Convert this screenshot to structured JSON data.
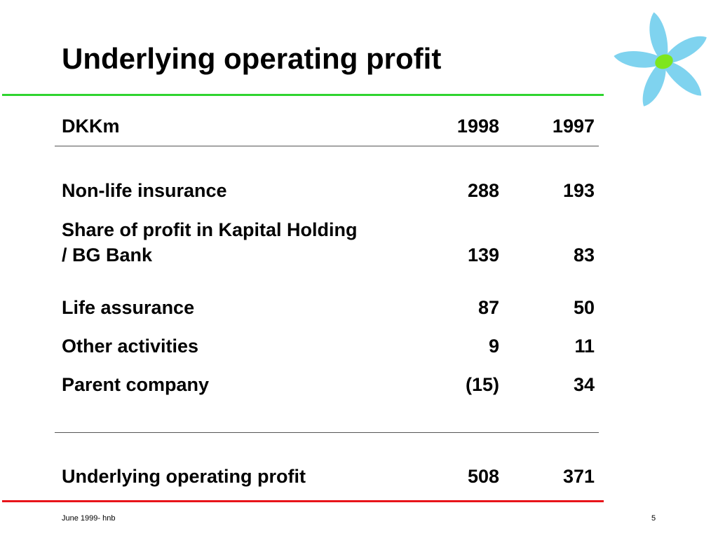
{
  "slide": {
    "title": "Underlying operating profit",
    "footer_left": "June 1999- hnb",
    "page_number": "5"
  },
  "colors": {
    "top_rule": "#2fd42f",
    "bottom_rule": "#e8141a",
    "logo_petals": "#7fd3ef",
    "logo_center": "#7ee61e"
  },
  "icons": {
    "logo": "flower-logo-icon"
  },
  "table": {
    "header": {
      "label": "DKKm",
      "y1998": "1998",
      "y1997": "1997"
    },
    "rows": [
      {
        "label": "Non-life insurance",
        "y1998": "288",
        "y1997": "193"
      },
      {
        "label_line1": "Share of profit in Kapital Holding",
        "label_line2": "/ BG Bank",
        "y1998": "139",
        "y1997": "83"
      },
      {
        "label": "Life assurance",
        "y1998": "87",
        "y1997": "50"
      },
      {
        "label": "Other activities",
        "y1998": "9",
        "y1997": "11"
      },
      {
        "label": "Parent company",
        "y1998": "(15)",
        "y1997": "34"
      }
    ],
    "total": {
      "label": "Underlying operating profit",
      "y1998": "508",
      "y1997": "371"
    }
  }
}
